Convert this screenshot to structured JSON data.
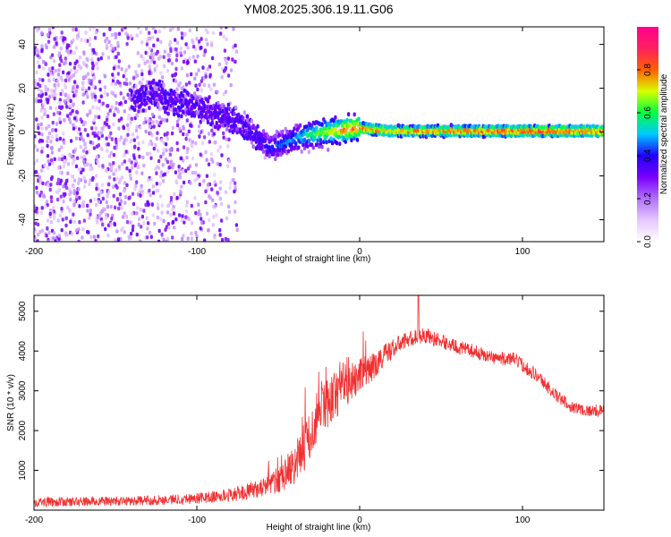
{
  "title": "YM08.2025.306.19.11.G06",
  "chart_data": [
    {
      "type": "heatmap",
      "name": "spectrogram",
      "xlabel": "Height of straight line (km)",
      "ylabel": "Frequency (Hz)",
      "xlim": [
        -200,
        150
      ],
      "ylim": [
        -50,
        48
      ],
      "xticks": [
        -200,
        -100,
        0,
        100
      ],
      "xtick_labels": [
        "-200",
        "-100",
        "0",
        "100"
      ],
      "yticks": [
        -40,
        -20,
        0,
        20,
        40
      ],
      "ytick_labels": [
        "-40",
        "-20",
        "0",
        "20",
        "40"
      ],
      "colorbar": {
        "label": "Normalized spectral amplitude",
        "range": [
          0,
          1
        ],
        "ticks": [
          0.0,
          0.2,
          0.4,
          0.6,
          0.8
        ],
        "tick_labels": [
          "0.0",
          "0.2",
          "0.4",
          "0.6",
          "0.8"
        ],
        "stops": [
          "#ffffff",
          "#e6c8ff",
          "#b070ff",
          "#7a00ff",
          "#2000ff",
          "#00c8ff",
          "#00ff40",
          "#d8ff00",
          "#ff6000",
          "#ff2060",
          "#ff0090"
        ]
      },
      "ridge": {
        "x": [
          -140,
          -125,
          -110,
          -100,
          -90,
          -80,
          -70,
          -60,
          -55,
          -50,
          -40,
          -30,
          -20,
          -10,
          0,
          10,
          20,
          50,
          100,
          150
        ],
        "frequency": [
          15,
          17,
          13,
          12,
          9,
          6,
          2,
          -4,
          -7,
          -6,
          -3,
          -1,
          0,
          1,
          2,
          1,
          0.5,
          0.5,
          0.5,
          0.5
        ],
        "amplitude": [
          0.25,
          0.28,
          0.3,
          0.3,
          0.32,
          0.35,
          0.35,
          0.4,
          0.45,
          0.45,
          0.5,
          0.6,
          0.7,
          0.8,
          0.85,
          0.85,
          0.8,
          0.85,
          0.88,
          0.88
        ]
      },
      "noise_region": {
        "x_range": [
          -200,
          -75
        ],
        "frequency_range": [
          -50,
          48
        ],
        "amplitude": 0.1
      }
    },
    {
      "type": "line",
      "name": "snr",
      "xlabel": "Height of straight line (km)",
      "ylabel": "SNR (10 * v/v)",
      "xlim": [
        -200,
        150
      ],
      "ylim": [
        0,
        5400
      ],
      "xticks": [
        -200,
        -100,
        0,
        100
      ],
      "xtick_labels": [
        "-200",
        "-100",
        "0",
        "100"
      ],
      "yticks": [
        1000,
        2000,
        3000,
        4000,
        5000
      ],
      "ytick_labels": [
        "1000",
        "2000",
        "3000",
        "4000",
        "5000"
      ],
      "color": "#f03030",
      "series": [
        {
          "name": "SNR",
          "x": [
            -200,
            -180,
            -160,
            -140,
            -120,
            -100,
            -90,
            -80,
            -70,
            -60,
            -50,
            -45,
            -40,
            -35,
            -30,
            -25,
            -20,
            -15,
            -10,
            -5,
            0,
            5,
            10,
            15,
            20,
            25,
            30,
            35,
            40,
            50,
            60,
            70,
            80,
            90,
            95,
            100,
            110,
            120,
            130,
            140,
            150
          ],
          "y": [
            200,
            210,
            220,
            230,
            260,
            300,
            330,
            380,
            450,
            580,
            750,
            950,
            1150,
            1500,
            1900,
            2350,
            2700,
            2900,
            3050,
            3200,
            3400,
            3500,
            3650,
            3900,
            4050,
            4200,
            4300,
            4350,
            4400,
            4250,
            4100,
            4000,
            3850,
            3800,
            3800,
            3650,
            3350,
            2900,
            2600,
            2500,
            2500
          ],
          "noise": [
            120,
            120,
            120,
            120,
            130,
            140,
            150,
            170,
            200,
            250,
            350,
            450,
            500,
            600,
            650,
            650,
            650,
            600,
            550,
            500,
            450,
            380,
            350,
            300,
            260,
            220,
            200,
            200,
            200,
            180,
            170,
            170,
            170,
            170,
            170,
            170,
            170,
            170,
            150,
            150,
            150
          ],
          "peak": {
            "x": 36,
            "y": 5400
          }
        }
      ]
    }
  ]
}
